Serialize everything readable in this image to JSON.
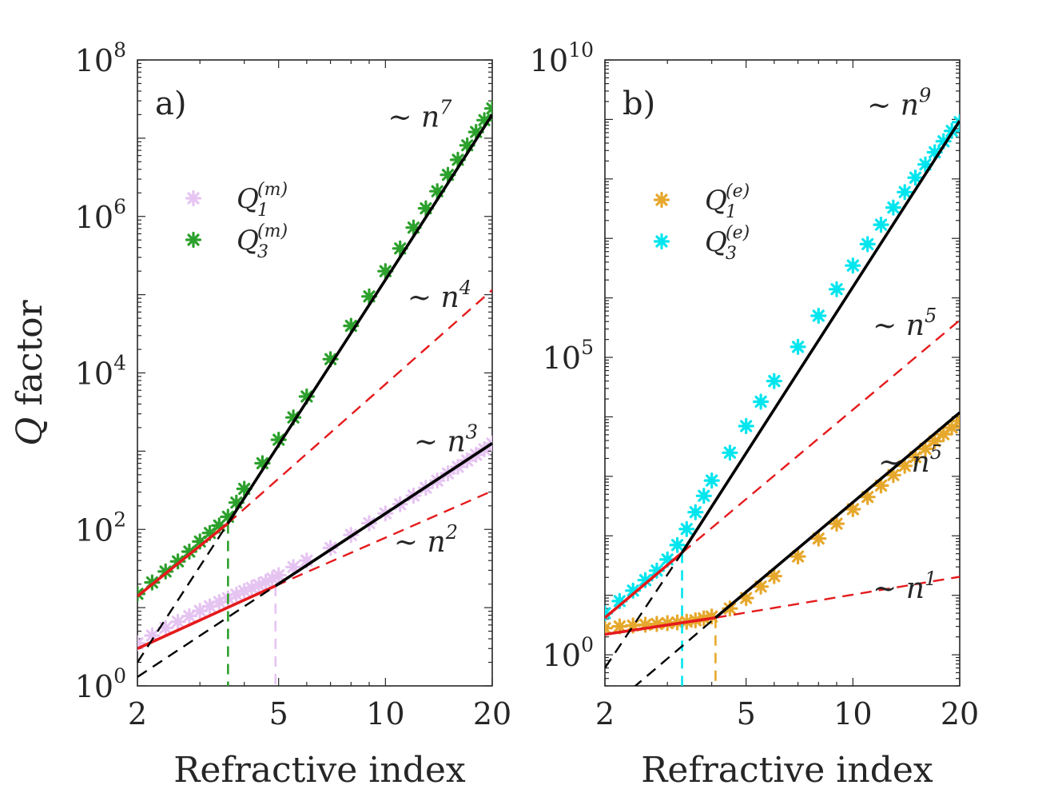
{
  "chart_data": [
    {
      "type": "scatter",
      "panel_label": "a)",
      "xscale": "log",
      "yscale": "log",
      "xlim": [
        2,
        20
      ],
      "ylim": [
        1,
        100000000
      ],
      "xticks": [
        2,
        5,
        10,
        20
      ],
      "xtick_labels": [
        "2",
        "5",
        "10",
        "20"
      ],
      "yticks": [
        1,
        100,
        10000,
        1000000,
        100000000
      ],
      "ytick_labels": [
        {
          "base": "10",
          "exp": "0"
        },
        {
          "base": "10",
          "exp": "2"
        },
        {
          "base": "10",
          "exp": "4"
        },
        {
          "base": "10",
          "exp": "6"
        },
        {
          "base": "10",
          "exp": "8"
        }
      ],
      "xlabel": "Refractive index",
      "ylabel": {
        "symbol": "Q",
        "word": "factor"
      },
      "legend_position": "upper-left",
      "series": [
        {
          "name": "Q1(m)",
          "label": {
            "main": "Q",
            "sub": "1",
            "sup": "(m)"
          },
          "color": "#e6c4f2",
          "marker": "star",
          "points": [
            [
              2.0,
              3.5
            ],
            [
              2.2,
              4.4
            ],
            [
              2.4,
              5.5
            ],
            [
              2.6,
              6.6
            ],
            [
              2.8,
              7.8
            ],
            [
              3.0,
              9.1
            ],
            [
              3.2,
              10.4
            ],
            [
              3.4,
              11.8
            ],
            [
              3.6,
              13.2
            ],
            [
              3.8,
              14.7
            ],
            [
              4.0,
              16.3
            ],
            [
              4.2,
              17.9
            ],
            [
              4.4,
              19.5
            ],
            [
              4.6,
              21.3
            ],
            [
              4.8,
              23.5
            ],
            [
              5.0,
              26
            ],
            [
              5.5,
              33
            ],
            [
              6,
              40
            ],
            [
              7,
              58
            ],
            [
              8,
              85
            ],
            [
              9,
              120
            ],
            [
              10,
              160
            ],
            [
              11,
              210
            ],
            [
              12,
              270
            ],
            [
              13,
              340
            ],
            [
              14,
              420
            ],
            [
              15,
              520
            ],
            [
              16,
              630
            ],
            [
              17,
              760
            ],
            [
              18,
              900
            ],
            [
              19,
              1060
            ],
            [
              20,
              1250
            ]
          ]
        },
        {
          "name": "Q3(m)",
          "label": {
            "main": "Q",
            "sub": "3",
            "sup": "(m)"
          },
          "color": "#2ca02c",
          "marker": "star",
          "points": [
            [
              2.0,
              15
            ],
            [
              2.2,
              21
            ],
            [
              2.4,
              29
            ],
            [
              2.6,
              39
            ],
            [
              2.8,
              52
            ],
            [
              3.0,
              70
            ],
            [
              3.2,
              90
            ],
            [
              3.4,
              112
            ],
            [
              3.6,
              145
            ],
            [
              3.8,
              220
            ],
            [
              4.0,
              330
            ],
            [
              4.5,
              700
            ],
            [
              5.0,
              1400
            ],
            [
              5.5,
              2700
            ],
            [
              6,
              5000
            ],
            [
              7,
              15000
            ],
            [
              8,
              40000
            ],
            [
              9,
              95000
            ],
            [
              10,
              200000
            ],
            [
              11,
              390000
            ],
            [
              12,
              720000
            ],
            [
              13,
              1270000
            ],
            [
              14,
              2100000
            ],
            [
              15,
              3400000
            ],
            [
              16,
              5300000
            ],
            [
              17,
              8100000
            ],
            [
              18,
              12000000
            ],
            [
              19,
              17000000
            ],
            [
              20,
              24000000
            ]
          ]
        }
      ],
      "fit_lines": [
        {
          "name": "Q1 low-n fit",
          "color": "#e41a1c",
          "style": "solid",
          "x": [
            2,
            4.9
          ],
          "y": [
            3,
            19
          ]
        },
        {
          "name": "Q1 low-n extrapolation",
          "color": "#e41a1c",
          "style": "dashed",
          "x": [
            4.9,
            20
          ],
          "y": [
            19,
            310
          ]
        },
        {
          "name": "Q1 high-n fit",
          "color": "#000000",
          "style": "solid",
          "x": [
            4.9,
            20
          ],
          "y": [
            19,
            1260
          ]
        },
        {
          "name": "Q1 high-n extrapolation",
          "color": "#000000",
          "style": "dashed",
          "x": [
            2,
            4.9
          ],
          "y": [
            1.3,
            19
          ]
        },
        {
          "name": "Q3 low-n fit",
          "color": "#e41a1c",
          "style": "solid",
          "x": [
            2,
            3.6
          ],
          "y": [
            14,
            120
          ]
        },
        {
          "name": "Q3 low-n extrapolation",
          "color": "#e41a1c",
          "style": "dashed",
          "x": [
            3.6,
            20
          ],
          "y": [
            120,
            115000
          ]
        },
        {
          "name": "Q3 high-n fit",
          "color": "#000000",
          "style": "solid",
          "x": [
            3.6,
            20
          ],
          "y": [
            120,
            20000000
          ]
        },
        {
          "name": "Q3 high-n extrapolation",
          "color": "#000000",
          "style": "dashed",
          "x": [
            2,
            3.6
          ],
          "y": [
            2.0,
            120
          ]
        }
      ],
      "crossover_lines": [
        {
          "x": 3.6,
          "y": 120,
          "color": "#2ca02c"
        },
        {
          "x": 4.9,
          "y": 19,
          "color": "#e6c4f2"
        }
      ],
      "annotations": [
        {
          "prefix": "∼ ",
          "var": "n",
          "exp": "7",
          "at": [
            12.5,
            14000000
          ]
        },
        {
          "prefix": "∼ ",
          "var": "n",
          "exp": "4",
          "at": [
            14.2,
            70000
          ]
        },
        {
          "prefix": "∼ ",
          "var": "n",
          "exp": "3",
          "at": [
            14.8,
            1000
          ]
        },
        {
          "prefix": "∼ ",
          "var": "n",
          "exp": "2",
          "at": [
            13.0,
            52
          ]
        }
      ]
    },
    {
      "type": "scatter",
      "panel_label": "b)",
      "xscale": "log",
      "yscale": "log",
      "xlim": [
        2,
        20
      ],
      "ylim": [
        0.3,
        10000000000
      ],
      "xticks": [
        2,
        5,
        10,
        20
      ],
      "xtick_labels": [
        "2",
        "5",
        "10",
        "20"
      ],
      "yticks": [
        1,
        100000,
        10000000000
      ],
      "ytick_labels": [
        {
          "base": "10",
          "exp": "0"
        },
        {
          "base": "10",
          "exp": "5"
        },
        {
          "base": "10",
          "exp": "10"
        }
      ],
      "xlabel": "Refractive index",
      "legend_position": "upper-left",
      "series": [
        {
          "name": "Q1(e)",
          "label": {
            "main": "Q",
            "sub": "1",
            "sup": "(e)"
          },
          "color": "#e6a82c",
          "marker": "star",
          "points": [
            [
              2.0,
              2.8
            ],
            [
              2.2,
              3.0
            ],
            [
              2.4,
              3.1
            ],
            [
              2.6,
              3.2
            ],
            [
              2.8,
              3.3
            ],
            [
              3.0,
              3.4
            ],
            [
              3.2,
              3.5
            ],
            [
              3.4,
              3.6
            ],
            [
              3.6,
              3.8
            ],
            [
              3.8,
              4.1
            ],
            [
              4.0,
              4.4
            ],
            [
              4.5,
              6
            ],
            [
              5.0,
              9
            ],
            [
              5.5,
              14
            ],
            [
              6,
              21
            ],
            [
              7,
              45
            ],
            [
              8,
              90
            ],
            [
              9,
              160
            ],
            [
              10,
              280
            ],
            [
              11,
              450
            ],
            [
              12,
              700
            ],
            [
              13,
              1050
            ],
            [
              14,
              1500
            ],
            [
              15,
              2100
            ],
            [
              16,
              2900
            ],
            [
              17,
              3900
            ],
            [
              18,
              5100
            ],
            [
              19,
              6600
            ],
            [
              20,
              8500
            ]
          ]
        },
        {
          "name": "Q3(e)",
          "label": {
            "main": "Q",
            "sub": "3",
            "sup": "(e)"
          },
          "color": "#00e5ee",
          "marker": "star",
          "points": [
            [
              2.0,
              5
            ],
            [
              2.2,
              8
            ],
            [
              2.4,
              12
            ],
            [
              2.6,
              18
            ],
            [
              2.8,
              26
            ],
            [
              3.0,
              40
            ],
            [
              3.2,
              70
            ],
            [
              3.4,
              130
            ],
            [
              3.6,
              250
            ],
            [
              3.8,
              470
            ],
            [
              4.0,
              850
            ],
            [
              4.5,
              2500
            ],
            [
              5.0,
              7000
            ],
            [
              5.5,
              18000
            ],
            [
              6,
              40000
            ],
            [
              7,
              150000
            ],
            [
              8,
              500000
            ],
            [
              9,
              1400000
            ],
            [
              10,
              3500000
            ],
            [
              11,
              8000000
            ],
            [
              12,
              17000000
            ],
            [
              13,
              33000000
            ],
            [
              14,
              60000000
            ],
            [
              15,
              105000000
            ],
            [
              16,
              175000000
            ],
            [
              17,
              280000000
            ],
            [
              18,
              430000000
            ],
            [
              19,
              640000000
            ],
            [
              20,
              900000000
            ]
          ]
        }
      ],
      "fit_lines": [
        {
          "name": "Q1 low-n fit",
          "color": "#e41a1c",
          "style": "solid",
          "x": [
            2,
            4.1
          ],
          "y": [
            2.2,
            4.2
          ]
        },
        {
          "name": "Q1 low-n extrapolation",
          "color": "#e41a1c",
          "style": "dashed",
          "x": [
            4.1,
            20
          ],
          "y": [
            4.2,
            20.5
          ]
        },
        {
          "name": "Q1 high-n fit",
          "color": "#000000",
          "style": "solid",
          "x": [
            4.1,
            20
          ],
          "y": [
            4.2,
            11800
          ]
        },
        {
          "name": "Q1 high-n extrapolation",
          "color": "#000000",
          "style": "dashed",
          "x": [
            2,
            4.1
          ],
          "y": [
            0.11,
            4.2
          ]
        },
        {
          "name": "Q3 low-n fit",
          "color": "#e41a1c",
          "style": "solid",
          "x": [
            2,
            3.3
          ],
          "y": [
            4.2,
            52
          ]
        },
        {
          "name": "Q3 low-n extrapolation",
          "color": "#e41a1c",
          "style": "dashed",
          "x": [
            3.3,
            20
          ],
          "y": [
            52,
            420000
          ]
        },
        {
          "name": "Q3 high-n fit",
          "color": "#000000",
          "style": "solid",
          "x": [
            3.3,
            20
          ],
          "y": [
            52,
            950000000
          ]
        },
        {
          "name": "Q3 high-n extrapolation",
          "color": "#000000",
          "style": "dashed",
          "x": [
            2,
            3.3
          ],
          "y": [
            0.6,
            52
          ]
        }
      ],
      "crossover_lines": [
        {
          "x": 3.3,
          "y": 52,
          "color": "#00e5ee"
        },
        {
          "x": 4.1,
          "y": 4.2,
          "color": "#e6a82c"
        }
      ],
      "annotations": [
        {
          "prefix": "∼ ",
          "var": "n",
          "exp": "9",
          "at": [
            13.5,
            1200000000
          ]
        },
        {
          "prefix": "∼ ",
          "var": "n",
          "exp": "5",
          "at": [
            14.0,
            240000
          ]
        },
        {
          "prefix": "∼ ",
          "var": "n",
          "exp": "5",
          "at": [
            14.5,
            1200
          ]
        },
        {
          "prefix": "∼ ",
          "var": "n",
          "exp": "1",
          "at": [
            14.0,
            9
          ]
        }
      ]
    }
  ]
}
